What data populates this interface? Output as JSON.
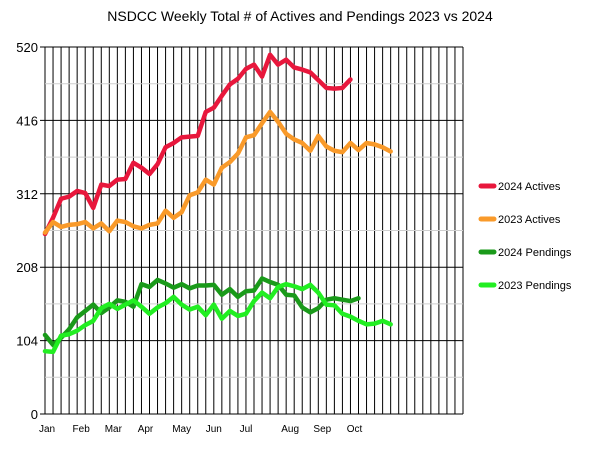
{
  "chart_data": {
    "type": "line",
    "title": "NSDCC Weekly Total # of Actives and Pendings 2023 vs 2024",
    "xlabel": "",
    "ylabel": "",
    "ylim": [
      0,
      520
    ],
    "yticks": [
      0,
      104,
      208,
      312,
      416,
      520
    ],
    "x_ticks": [
      "Jan",
      "Feb",
      "Mar",
      "Apr",
      "May",
      "Jun",
      "Jul",
      "Aug",
      "Sep",
      "Oct"
    ],
    "x_tick_weeks": [
      0,
      4.5,
      8.5,
      12.5,
      17,
      21,
      25,
      30.5,
      34.5,
      38.5
    ],
    "weeks": 52,
    "grid": true,
    "legend_position": "right",
    "series": [
      {
        "name": "2024 Actives",
        "color": "#e8173c",
        "values": [
          255,
          278,
          305,
          308,
          316,
          313,
          292,
          325,
          323,
          332,
          333,
          356,
          349,
          340,
          354,
          378,
          384,
          392,
          393,
          394,
          428,
          434,
          451,
          467,
          475,
          489,
          495,
          478,
          509,
          495,
          502,
          491,
          488,
          484,
          473,
          462,
          461,
          462,
          474
        ]
      },
      {
        "name": "2023 Actives",
        "color": "#f99a2a",
        "values": [
          257,
          272,
          265,
          268,
          269,
          272,
          263,
          270,
          259,
          274,
          272,
          266,
          263,
          268,
          270,
          288,
          278,
          286,
          310,
          314,
          332,
          325,
          349,
          357,
          369,
          392,
          395,
          412,
          428,
          414,
          397,
          389,
          384,
          373,
          394,
          379,
          373,
          371,
          384,
          374,
          384,
          382,
          378,
          372
        ]
      },
      {
        "name": "2024 Pendings",
        "color": "#1a9a1a",
        "values": [
          112,
          98,
          108,
          120,
          137,
          146,
          155,
          143,
          151,
          161,
          159,
          152,
          184,
          180,
          190,
          185,
          179,
          184,
          178,
          182,
          182,
          183,
          169,
          177,
          166,
          174,
          175,
          192,
          187,
          183,
          169,
          168,
          151,
          144,
          150,
          162,
          164,
          162,
          160,
          164
        ]
      },
      {
        "name": "2023 Pendings",
        "color": "#22ee22",
        "values": [
          89,
          88,
          111,
          113,
          118,
          126,
          132,
          150,
          156,
          149,
          155,
          161,
          152,
          142,
          151,
          157,
          166,
          155,
          148,
          152,
          140,
          155,
          135,
          146,
          139,
          142,
          160,
          172,
          164,
          180,
          184,
          181,
          177,
          183,
          172,
          155,
          154,
          142,
          138,
          132,
          127,
          128,
          132,
          127
        ]
      }
    ]
  }
}
